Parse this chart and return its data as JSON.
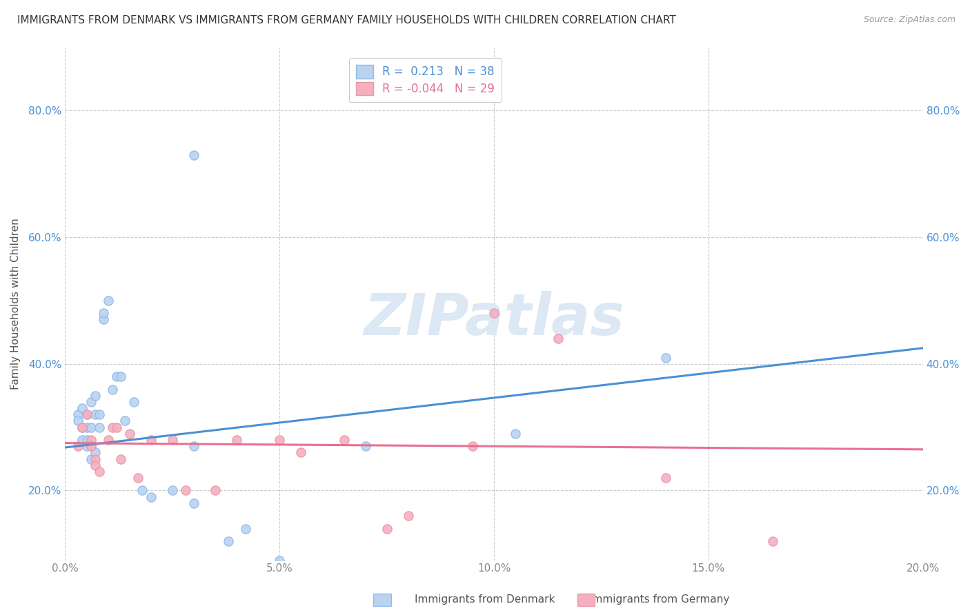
{
  "title": "IMMIGRANTS FROM DENMARK VS IMMIGRANTS FROM GERMANY FAMILY HOUSEHOLDS WITH CHILDREN CORRELATION CHART",
  "source": "Source: ZipAtlas.com",
  "ylabel": "Family Households with Children",
  "legend_entries": [
    {
      "label": "Immigrants from Denmark",
      "R": "0.213",
      "N": "38"
    },
    {
      "label": "Immigrants from Germany",
      "R": "-0.044",
      "N": "29"
    }
  ],
  "xlim": [
    0.0,
    0.2
  ],
  "ylim": [
    0.09,
    0.9
  ],
  "xticks": [
    0.0,
    0.05,
    0.1,
    0.15,
    0.2
  ],
  "yticks": [
    0.2,
    0.4,
    0.6,
    0.8
  ],
  "xticklabels": [
    "0.0%",
    "5.0%",
    "10.0%",
    "15.0%",
    "20.0%"
  ],
  "yticklabels": [
    "20.0%",
    "40.0%",
    "60.0%",
    "80.0%"
  ],
  "watermark_text": "ZIPatlas",
  "denmark_points": [
    [
      0.003,
      0.32
    ],
    [
      0.003,
      0.31
    ],
    [
      0.004,
      0.33
    ],
    [
      0.004,
      0.3
    ],
    [
      0.004,
      0.28
    ],
    [
      0.005,
      0.32
    ],
    [
      0.005,
      0.3
    ],
    [
      0.005,
      0.28
    ],
    [
      0.005,
      0.27
    ],
    [
      0.006,
      0.34
    ],
    [
      0.006,
      0.3
    ],
    [
      0.006,
      0.27
    ],
    [
      0.006,
      0.25
    ],
    [
      0.007,
      0.35
    ],
    [
      0.007,
      0.32
    ],
    [
      0.007,
      0.26
    ],
    [
      0.008,
      0.32
    ],
    [
      0.008,
      0.3
    ],
    [
      0.009,
      0.47
    ],
    [
      0.009,
      0.48
    ],
    [
      0.01,
      0.5
    ],
    [
      0.011,
      0.36
    ],
    [
      0.012,
      0.38
    ],
    [
      0.013,
      0.38
    ],
    [
      0.014,
      0.31
    ],
    [
      0.016,
      0.34
    ],
    [
      0.018,
      0.2
    ],
    [
      0.02,
      0.19
    ],
    [
      0.025,
      0.2
    ],
    [
      0.03,
      0.18
    ],
    [
      0.03,
      0.27
    ],
    [
      0.038,
      0.12
    ],
    [
      0.042,
      0.14
    ],
    [
      0.05,
      0.09
    ],
    [
      0.07,
      0.27
    ],
    [
      0.03,
      0.73
    ],
    [
      0.105,
      0.29
    ],
    [
      0.14,
      0.41
    ]
  ],
  "germany_points": [
    [
      0.003,
      0.27
    ],
    [
      0.004,
      0.3
    ],
    [
      0.005,
      0.32
    ],
    [
      0.006,
      0.28
    ],
    [
      0.006,
      0.27
    ],
    [
      0.007,
      0.25
    ],
    [
      0.007,
      0.24
    ],
    [
      0.008,
      0.23
    ],
    [
      0.01,
      0.28
    ],
    [
      0.011,
      0.3
    ],
    [
      0.012,
      0.3
    ],
    [
      0.013,
      0.25
    ],
    [
      0.015,
      0.29
    ],
    [
      0.017,
      0.22
    ],
    [
      0.02,
      0.28
    ],
    [
      0.025,
      0.28
    ],
    [
      0.028,
      0.2
    ],
    [
      0.035,
      0.2
    ],
    [
      0.04,
      0.28
    ],
    [
      0.05,
      0.28
    ],
    [
      0.055,
      0.26
    ],
    [
      0.065,
      0.28
    ],
    [
      0.075,
      0.14
    ],
    [
      0.08,
      0.16
    ],
    [
      0.095,
      0.27
    ],
    [
      0.1,
      0.48
    ],
    [
      0.115,
      0.44
    ],
    [
      0.14,
      0.22
    ],
    [
      0.165,
      0.12
    ]
  ],
  "denmark_line_x": [
    0.0,
    0.2
  ],
  "denmark_line_y": [
    0.268,
    0.425
  ],
  "germany_line_x": [
    0.0,
    0.2
  ],
  "germany_line_y": [
    0.275,
    0.265
  ],
  "title_fontsize": 11,
  "axis_tick_fontsize": 11,
  "legend_fontsize": 12,
  "ylabel_fontsize": 11,
  "background_color": "#ffffff",
  "grid_color": "#cccccc",
  "scatter_size": 90,
  "denmark_scatter_color": "#b8d4f0",
  "denmark_scatter_edge": "#94b8e8",
  "germany_scatter_color": "#f5b0c0",
  "germany_scatter_edge": "#e898a8",
  "denmark_line_color": "#4a90d4",
  "germany_line_color": "#e87090",
  "watermark_color": "#dce8f4",
  "watermark_fontsize": 60,
  "tick_color_y": "#4a90d4",
  "tick_color_x": "#888888"
}
